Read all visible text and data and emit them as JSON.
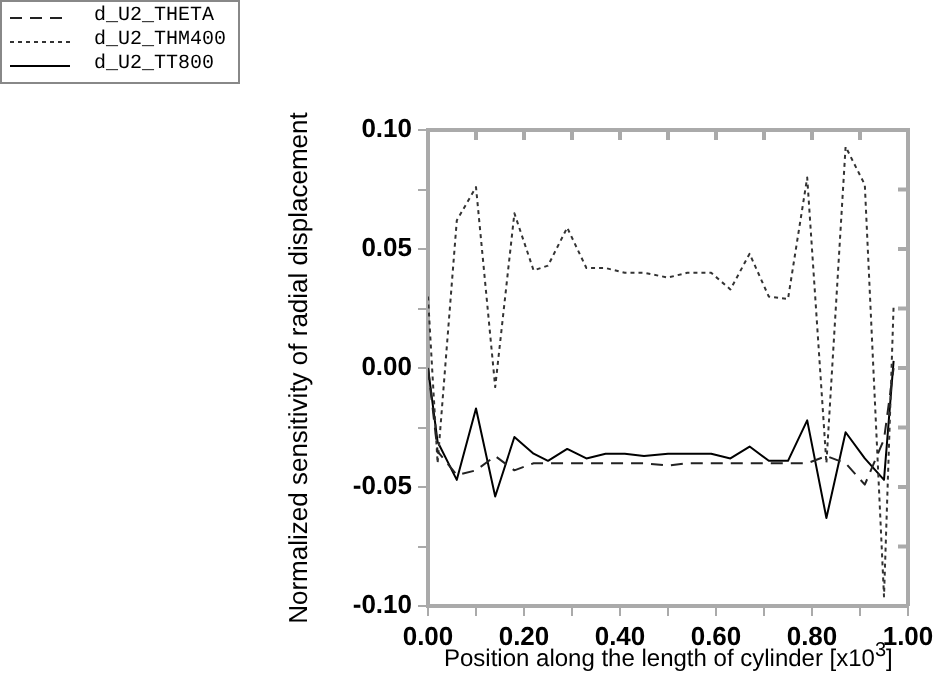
{
  "chart_data": {
    "type": "line",
    "ylabel": "Normalized sensitivity of radial displacement",
    "xlabel": "Position along the length of cylinder [x10$^{3}$]",
    "x": [
      0,
      0.02,
      0.06,
      0.1,
      0.14,
      0.18,
      0.22,
      0.25,
      0.29,
      0.33,
      0.37,
      0.41,
      0.45,
      0.5,
      0.54,
      0.59,
      0.63,
      0.67,
      0.71,
      0.75,
      0.79,
      0.83,
      0.87,
      0.91,
      0.95,
      0.97
    ],
    "series": [
      {
        "name": "d_U2_THETA",
        "color": "#222222",
        "line_style": "dashed",
        "values": [
          0.0,
          -0.035,
          -0.045,
          -0.043,
          -0.037,
          -0.043,
          -0.04,
          -0.04,
          -0.04,
          -0.04,
          -0.04,
          -0.04,
          -0.04,
          -0.041,
          -0.04,
          -0.04,
          -0.04,
          -0.04,
          -0.04,
          -0.04,
          -0.04,
          -0.037,
          -0.04,
          -0.049,
          -0.03,
          0.0
        ]
      },
      {
        "name": "d_U2_THM400",
        "color": "#333333",
        "line_style": "dotted",
        "values": [
          0.03,
          -0.04,
          0.062,
          0.076,
          -0.008,
          0.065,
          0.041,
          0.043,
          0.059,
          0.042,
          0.042,
          0.04,
          0.04,
          0.038,
          0.04,
          0.04,
          0.033,
          0.048,
          0.03,
          0.029,
          0.08,
          -0.04,
          0.093,
          0.077,
          -0.096,
          0.026
        ]
      },
      {
        "name": "d_U2_TT800",
        "color": "#000000",
        "line_style": "solid",
        "values": [
          0.0,
          -0.031,
          -0.047,
          -0.017,
          -0.054,
          -0.029,
          -0.036,
          -0.039,
          -0.034,
          -0.038,
          -0.036,
          -0.036,
          -0.037,
          -0.036,
          -0.036,
          -0.036,
          -0.038,
          -0.033,
          -0.039,
          -0.039,
          -0.022,
          -0.063,
          -0.027,
          -0.038,
          -0.047,
          0.003
        ]
      }
    ],
    "xlim": [
      0,
      1
    ],
    "xticks": [
      {
        "value": 0,
        "label": "0.00"
      },
      {
        "value": 0.1,
        "label": null
      },
      {
        "value": 0.2,
        "label": "0.20"
      },
      {
        "value": 0.3,
        "label": null
      },
      {
        "value": 0.4,
        "label": "0.40"
      },
      {
        "value": 0.5,
        "label": null
      },
      {
        "value": 0.6,
        "label": "0.60"
      },
      {
        "value": 0.7,
        "label": null
      },
      {
        "value": 0.8,
        "label": "0.80"
      },
      {
        "value": 0.9,
        "label": null
      },
      {
        "value": 1,
        "label": "1.00"
      }
    ],
    "ylim": [
      -0.1,
      0.1
    ],
    "yticks": [
      {
        "value": -0.1,
        "label": "-0.10"
      },
      {
        "value": -0.075,
        "label": null
      },
      {
        "value": -0.05,
        "label": "-0.05"
      },
      {
        "value": -0.025,
        "label": null
      },
      {
        "value": 0,
        "label": "0.00"
      },
      {
        "value": 0.025,
        "label": null
      },
      {
        "value": 0.05,
        "label": "0.05"
      },
      {
        "value": 0.075,
        "label": null
      },
      {
        "value": 0.1,
        "label": "0.10"
      }
    ],
    "grid": false,
    "legend": "top left",
    "marker": "none"
  }
}
